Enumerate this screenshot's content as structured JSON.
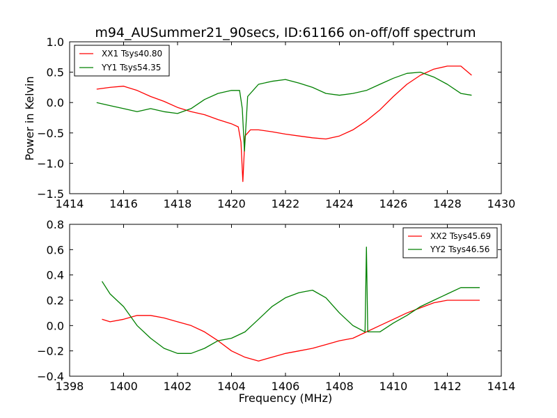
{
  "chart_data": [
    {
      "type": "line",
      "title": "m94_AUSummer21_90secs, ID:61166 on-off/off spectrum",
      "xlabel": "",
      "ylabel": "Power in Kelvin",
      "xlim": [
        1414,
        1430
      ],
      "ylim": [
        -1.5,
        1.0
      ],
      "xticks": [
        "1414",
        "1416",
        "1418",
        "1420",
        "1422",
        "1424",
        "1426",
        "1428",
        "1430"
      ],
      "yticks": [
        "−1.5",
        "−1.0",
        "−0.5",
        "0.0",
        "0.5",
        "1.0"
      ],
      "grid": false,
      "legend_position": "top-left",
      "series": [
        {
          "name": "XX1 Tsys40.80",
          "color": "#ff0000",
          "x": [
            1415.0,
            1415.5,
            1416.0,
            1416.5,
            1417.0,
            1417.5,
            1418.0,
            1418.5,
            1419.0,
            1419.5,
            1420.0,
            1420.25,
            1420.35,
            1420.42,
            1420.5,
            1420.7,
            1421.0,
            1421.5,
            1422.0,
            1422.5,
            1423.0,
            1423.5,
            1424.0,
            1424.5,
            1425.0,
            1425.5,
            1426.0,
            1426.5,
            1427.0,
            1427.5,
            1428.0,
            1428.5,
            1428.9
          ],
          "y": [
            0.22,
            0.25,
            0.27,
            0.2,
            0.1,
            0.02,
            -0.08,
            -0.15,
            -0.2,
            -0.28,
            -0.35,
            -0.4,
            -0.65,
            -1.3,
            -0.55,
            -0.45,
            -0.45,
            -0.48,
            -0.52,
            -0.55,
            -0.58,
            -0.6,
            -0.55,
            -0.45,
            -0.3,
            -0.12,
            0.1,
            0.3,
            0.45,
            0.55,
            0.6,
            0.6,
            0.45
          ]
        },
        {
          "name": "YY1 Tsys54.35",
          "color": "#008000",
          "x": [
            1415.0,
            1415.5,
            1416.0,
            1416.5,
            1417.0,
            1417.5,
            1418.0,
            1418.5,
            1419.0,
            1419.5,
            1420.0,
            1420.3,
            1420.4,
            1420.48,
            1420.6,
            1421.0,
            1421.5,
            1422.0,
            1422.5,
            1423.0,
            1423.5,
            1424.0,
            1424.5,
            1425.0,
            1425.5,
            1426.0,
            1426.5,
            1427.0,
            1427.5,
            1428.0,
            1428.5,
            1428.9
          ],
          "y": [
            0.0,
            -0.05,
            -0.1,
            -0.15,
            -0.1,
            -0.15,
            -0.18,
            -0.1,
            0.05,
            0.15,
            0.2,
            0.2,
            -0.1,
            -0.8,
            0.1,
            0.3,
            0.35,
            0.38,
            0.32,
            0.25,
            0.15,
            0.12,
            0.15,
            0.2,
            0.3,
            0.4,
            0.48,
            0.5,
            0.42,
            0.3,
            0.15,
            0.12
          ]
        }
      ]
    },
    {
      "type": "line",
      "title": "",
      "xlabel": "Frequency (MHz)",
      "ylabel": "",
      "xlim": [
        1398,
        1414
      ],
      "ylim": [
        -0.4,
        0.8
      ],
      "xticks": [
        "1398",
        "1400",
        "1402",
        "1404",
        "1406",
        "1408",
        "1410",
        "1412",
        "1414"
      ],
      "yticks": [
        "−0.4",
        "−0.2",
        "0.0",
        "0.2",
        "0.4",
        "0.6",
        "0.8"
      ],
      "grid": false,
      "legend_position": "top-right",
      "series": [
        {
          "name": "XX2 Tsys45.69",
          "color": "#ff0000",
          "x": [
            1399.2,
            1399.5,
            1400.0,
            1400.5,
            1401.0,
            1401.5,
            1402.0,
            1402.5,
            1403.0,
            1403.5,
            1404.0,
            1404.5,
            1405.0,
            1405.5,
            1406.0,
            1406.5,
            1407.0,
            1407.5,
            1408.0,
            1408.5,
            1409.0,
            1409.5,
            1410.0,
            1410.5,
            1411.0,
            1411.5,
            1412.0,
            1412.5,
            1413.2
          ],
          "y": [
            0.05,
            0.03,
            0.05,
            0.08,
            0.08,
            0.06,
            0.03,
            0.0,
            -0.05,
            -0.12,
            -0.2,
            -0.25,
            -0.28,
            -0.25,
            -0.22,
            -0.2,
            -0.18,
            -0.15,
            -0.12,
            -0.1,
            -0.05,
            0.0,
            0.05,
            0.1,
            0.14,
            0.18,
            0.2,
            0.2,
            0.2
          ]
        },
        {
          "name": "YY2 Tsys46.56",
          "color": "#008000",
          "x": [
            1399.2,
            1399.5,
            1400.0,
            1400.5,
            1401.0,
            1401.5,
            1402.0,
            1402.5,
            1403.0,
            1403.5,
            1404.0,
            1404.5,
            1405.0,
            1405.5,
            1406.0,
            1406.5,
            1407.0,
            1407.5,
            1408.0,
            1408.5,
            1408.95,
            1409.0,
            1409.05,
            1409.5,
            1410.0,
            1410.5,
            1411.0,
            1411.5,
            1412.0,
            1412.5,
            1413.2
          ],
          "y": [
            0.35,
            0.25,
            0.15,
            0.0,
            -0.1,
            -0.18,
            -0.22,
            -0.22,
            -0.18,
            -0.12,
            -0.1,
            -0.05,
            0.05,
            0.15,
            0.22,
            0.26,
            0.28,
            0.22,
            0.1,
            0.0,
            -0.05,
            0.62,
            -0.05,
            -0.05,
            0.02,
            0.08,
            0.15,
            0.2,
            0.25,
            0.3,
            0.3
          ]
        }
      ]
    }
  ]
}
